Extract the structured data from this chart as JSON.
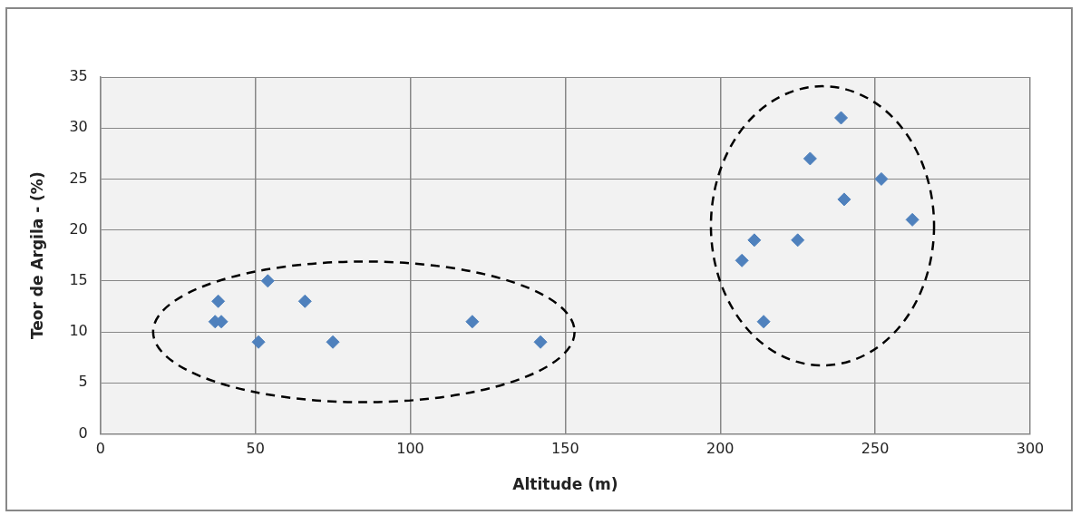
{
  "chart_data": {
    "type": "scatter",
    "xlabel": "Altitude (m)",
    "ylabel": "Teor de Argila - (%)",
    "x": [
      38,
      37,
      39,
      54,
      51,
      66,
      75,
      120,
      142,
      239,
      229,
      252,
      240,
      262,
      211,
      225,
      207,
      214
    ],
    "series": [
      {
        "color": "#4f81bd",
        "values": [
          13,
          11,
          11,
          15,
          9,
          13,
          9,
          11,
          9,
          31,
          27,
          25,
          23,
          21,
          19,
          19,
          17,
          11
        ]
      }
    ],
    "xlim": [
      0,
      300
    ],
    "xticks": [
      0,
      50,
      100,
      150,
      200,
      250,
      300
    ],
    "ylim": [
      0,
      35
    ],
    "yticks": [
      0,
      5,
      10,
      15,
      20,
      25,
      30,
      35
    ],
    "grid": true,
    "legend": false,
    "marker": "diamond"
  }
}
